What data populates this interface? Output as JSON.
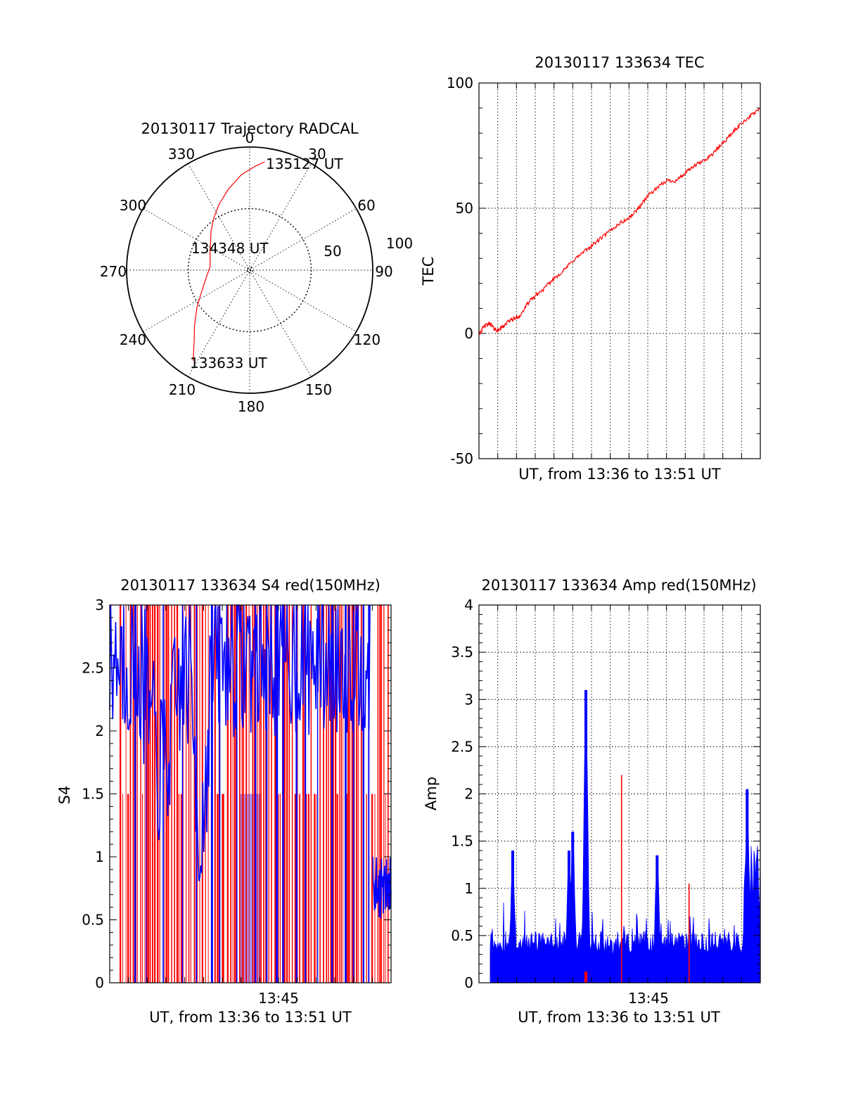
{
  "colors": {
    "red": "#ff0000",
    "blue": "#0000ff",
    "light_blue": "#9999ff",
    "black": "#000000"
  },
  "chart_data": [
    {
      "type": "polar",
      "title": "20130117 Trajectory RADCAL",
      "azimuth_labels": [
        "0",
        "30",
        "60",
        "90",
        "120",
        "150",
        "180",
        "210",
        "240",
        "270",
        "300",
        "330"
      ],
      "radial_labels": [
        "50",
        "100"
      ],
      "rmax": 100,
      "points": [
        {
          "label": "133633 UT",
          "az": 212,
          "el": 12
        },
        {
          "label": "134348 UT",
          "az": 260,
          "el": 56
        },
        {
          "label": "135127 UT",
          "az": 8,
          "el": 10
        }
      ],
      "series": [
        {
          "color": "red",
          "az": [
            212,
            218,
            225,
            235,
            245,
            255,
            265,
            275,
            285,
            295,
            305,
            315,
            325,
            335,
            345,
            355,
            3,
            8
          ],
          "el": [
            12,
            24,
            33,
            43,
            51,
            56,
            59,
            61,
            60,
            58,
            55,
            50,
            44,
            37,
            29,
            20,
            14,
            10
          ]
        }
      ]
    },
    {
      "type": "line",
      "title": "20130117 133634 TEC",
      "ylabel": "TEC",
      "xlabel": "UT, from 13:36 to 13:51 UT",
      "ylim": [
        -50,
        100
      ],
      "yticks": [
        "100",
        "50",
        "0",
        "-50"
      ],
      "xlim": [
        0,
        15
      ],
      "grid": true,
      "series": [
        {
          "color": "red",
          "x": [
            0,
            0.3,
            0.6,
            0.8,
            1.0,
            1.3,
            1.6,
            1.9,
            2.2,
            2.6,
            3.0,
            3.5,
            4.0,
            4.5,
            5.0,
            5.5,
            6.0,
            6.5,
            7.0,
            7.5,
            8.0,
            8.5,
            9.0,
            9.5,
            10.0,
            10.5,
            11.0,
            11.5,
            12.0,
            12.5,
            13.0,
            13.5,
            14.0,
            14.5,
            15.0
          ],
          "y": [
            0,
            3,
            4,
            2,
            1,
            3,
            5,
            6,
            7,
            12,
            15,
            18,
            22,
            25,
            29,
            32,
            35,
            38,
            41,
            44,
            46,
            50,
            55,
            58,
            61,
            61,
            64,
            67,
            69,
            72,
            76,
            80,
            84,
            87,
            90
          ]
        }
      ]
    },
    {
      "type": "bar",
      "title": "20130117 133634 S4 red(150MHz)",
      "ylabel": "S4",
      "xlabel": "UT, from 13:36 to 13:51 UT",
      "xtick": "13:45",
      "xtick_value": 9,
      "ylim": [
        0,
        3
      ],
      "yticks": [
        "3",
        "2.5",
        "2",
        "1.5",
        "1",
        "0.5",
        "0"
      ],
      "xlim": [
        0,
        15
      ]
    },
    {
      "type": "bar",
      "title": "20130117 133634 Amp red(150MHz)",
      "ylabel": "Amp",
      "xlabel": "UT, from 13:36 to 13:51 UT",
      "xtick": "13:45",
      "xtick_value": 9,
      "ylim": [
        0,
        4
      ],
      "yticks": [
        "4",
        "3.5",
        "3",
        "2.5",
        "2",
        "1.5",
        "1",
        "0.5",
        "0"
      ],
      "xlim": [
        0,
        15
      ],
      "peaks": [
        {
          "x": 1.8,
          "y": 1.4,
          "color": "blue"
        },
        {
          "x": 4.8,
          "y": 1.4,
          "color": "blue"
        },
        {
          "x": 5.0,
          "y": 1.6,
          "color": "blue"
        },
        {
          "x": 5.7,
          "y": 3.1,
          "color": "blue"
        },
        {
          "x": 7.6,
          "y": 2.2,
          "color": "red"
        },
        {
          "x": 9.5,
          "y": 1.35,
          "color": "blue"
        },
        {
          "x": 11.2,
          "y": 1.05,
          "color": "red"
        },
        {
          "x": 14.3,
          "y": 2.05,
          "color": "blue"
        }
      ]
    }
  ]
}
